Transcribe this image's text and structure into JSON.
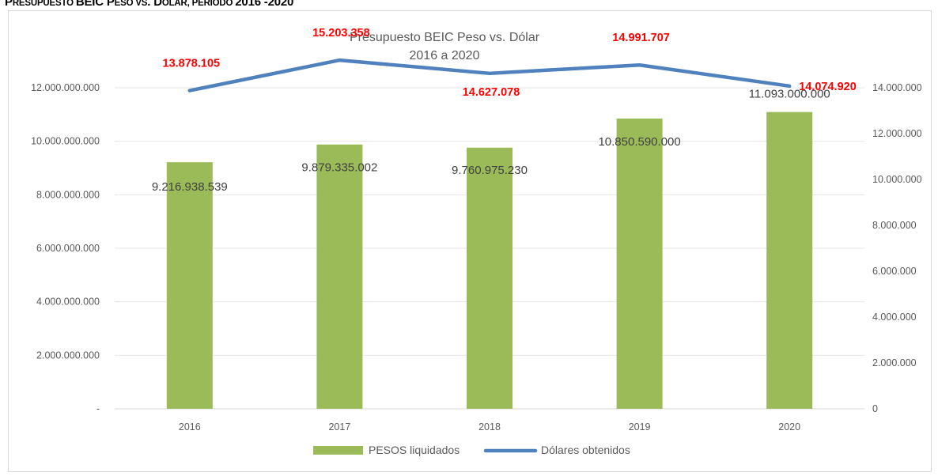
{
  "heading": {
    "part1": "P",
    "part2": "RESUPUESTO ",
    "part3": "BEIC P",
    "part4": "ESO VS",
    "part5": ". D",
    "part6": "ÓLAR, PERIODO ",
    "part7": "2016 -2020"
  },
  "colors": {
    "bars": "#9bbb59",
    "line": "#4f81bd",
    "line_labels": "#ff0000"
  },
  "chart_data": {
    "type": "bar",
    "title": "Presupuesto  BEIC Peso vs. Dólar",
    "subtitle": "2016 a 2020",
    "categories": [
      "2016",
      "2017",
      "2018",
      "2019",
      "2020"
    ],
    "series": [
      {
        "name": "PESOS liquidados",
        "type": "bar",
        "axis": "left",
        "values": [
          9216938539,
          9879335002,
          9760975230,
          10850590000,
          11093000000
        ],
        "labels": [
          "9.216.938.539",
          "9.879.335.002",
          "9.760.975.230",
          "10.850.590.000",
          "11.093.000.000"
        ]
      },
      {
        "name": "Dólares obtenidos",
        "type": "line",
        "axis": "right",
        "values": [
          13878105,
          15203358,
          14627078,
          14991707,
          14074920
        ],
        "labels": [
          "13.878.105",
          "15.203.358",
          "14.627.078",
          "14.991.707",
          "14.074.920"
        ]
      }
    ],
    "y_left": {
      "range": [
        0,
        12000000000
      ],
      "ticks": [
        0,
        2000000000,
        4000000000,
        6000000000,
        8000000000,
        10000000000,
        12000000000
      ],
      "tick_labels": [
        "-",
        "2.000.000.000",
        "4.000.000.000",
        "6.000.000.000",
        "8.000.000.000",
        "10.000.000.000",
        "12.000.000.000"
      ]
    },
    "y_right": {
      "range": [
        0,
        14000000
      ],
      "ticks": [
        0,
        2000000,
        4000000,
        6000000,
        8000000,
        10000000,
        12000000,
        14000000
      ],
      "tick_labels": [
        "0",
        "2.000.000",
        "4.000.000",
        "6.000.000",
        "8.000.000",
        "10.000.000",
        "12.000.000",
        "14.000.000"
      ]
    },
    "grid": true,
    "legend": "bottom"
  }
}
